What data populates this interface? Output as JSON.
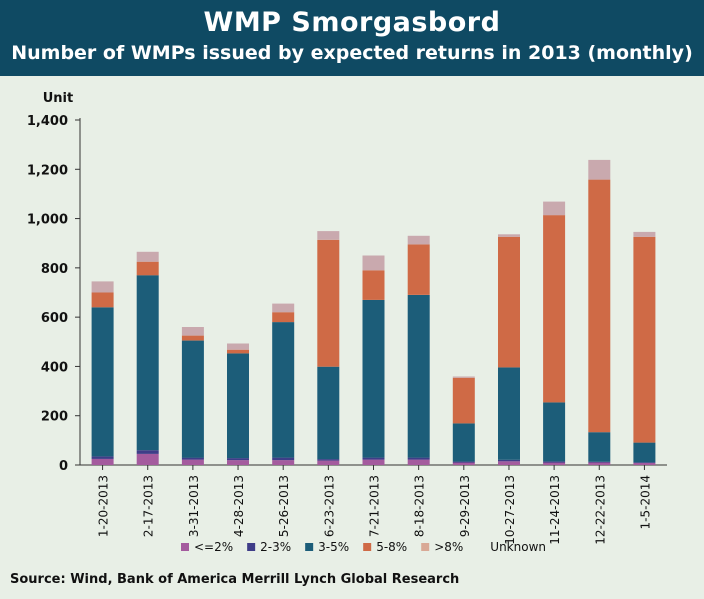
{
  "header": {
    "title": "WMP Smorgasbord",
    "subtitle": "Number of WMPs issued by expected returns in 2013 (monthly)"
  },
  "footer": {
    "source": "Source: Wind, Bank of America Merrill Lynch Global Research"
  },
  "chart_data": {
    "type": "bar",
    "stacked": true,
    "title": "Number of WMPs issued by expected returns in 2013 (monthly)",
    "ylabel": "Unit",
    "xlabel": "",
    "ylim": [
      0,
      1400
    ],
    "yticks": [
      0,
      200,
      400,
      600,
      800,
      1000,
      1200,
      1400
    ],
    "ytick_labels": [
      "0",
      "200",
      "400",
      "600",
      "800",
      "1,000",
      "1,200",
      "1,400"
    ],
    "grid": false,
    "legend_position": "bottom",
    "categories": [
      "1-20-2013",
      "2-17-2013",
      "3-31-2013",
      "4-28-2013",
      "5-26-2013",
      "6-23-2013",
      "7-21-2013",
      "8-18-2013",
      "9-29-2013",
      "10-27-2013",
      "11-24-2013",
      "12-22-2013",
      "1-5-2014"
    ],
    "series": [
      {
        "name": "<=2%",
        "color": "#a45b9e",
        "values": [
          25,
          45,
          22,
          20,
          20,
          18,
          22,
          22,
          10,
          15,
          10,
          10,
          8
        ]
      },
      {
        "name": "2-3%",
        "color": "#3f3d88",
        "values": [
          10,
          15,
          8,
          8,
          10,
          6,
          8,
          8,
          4,
          6,
          4,
          3,
          3
        ]
      },
      {
        "name": "3-5%",
        "color": "#1c5d79",
        "values": [
          605,
          710,
          475,
          425,
          550,
          375,
          640,
          660,
          155,
          375,
          240,
          120,
          80
        ]
      },
      {
        "name": "5-8%",
        "color": "#cf6a46",
        "values": [
          60,
          55,
          20,
          15,
          40,
          515,
          120,
          205,
          185,
          530,
          760,
          1025,
          835
        ]
      },
      {
        "name": ">8%",
        "color": "#d9a996",
        "values": [
          0,
          0,
          0,
          0,
          0,
          0,
          0,
          0,
          0,
          0,
          0,
          0,
          0
        ]
      },
      {
        "name": "Unknown",
        "color": "#c9a9ae",
        "values": [
          45,
          40,
          35,
          25,
          35,
          35,
          60,
          35,
          5,
          10,
          55,
          80,
          20
        ]
      }
    ]
  }
}
